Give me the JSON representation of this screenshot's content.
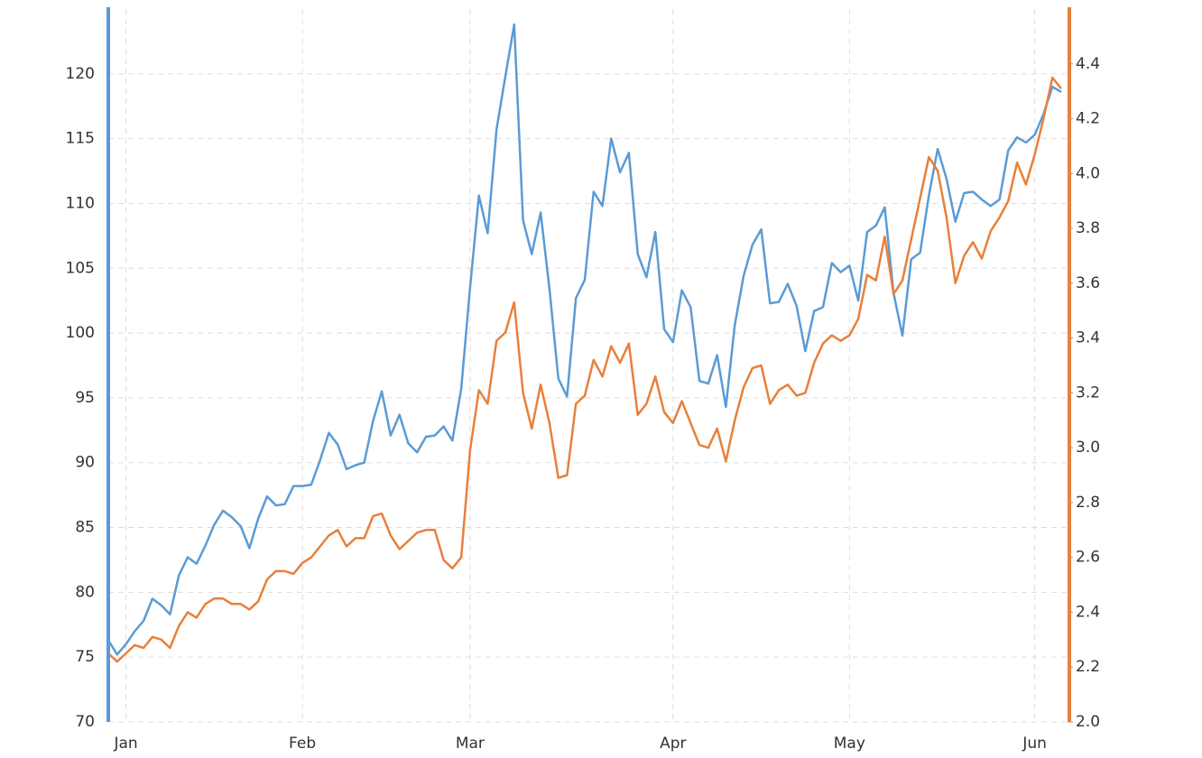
{
  "chart_data": {
    "type": "line",
    "categories": [
      null,
      null,
      "Jan",
      null,
      null,
      null,
      null,
      null,
      null,
      null,
      null,
      null,
      null,
      null,
      null,
      null,
      null,
      null,
      null,
      null,
      null,
      null,
      "Feb",
      null,
      null,
      null,
      null,
      null,
      null,
      null,
      null,
      null,
      null,
      null,
      null,
      null,
      null,
      null,
      null,
      null,
      null,
      "Mar",
      null,
      null,
      null,
      null,
      null,
      null,
      null,
      null,
      null,
      null,
      null,
      null,
      null,
      null,
      null,
      null,
      null,
      null,
      null,
      null,
      null,
      null,
      "Apr",
      null,
      null,
      null,
      null,
      null,
      null,
      null,
      null,
      null,
      null,
      null,
      null,
      null,
      null,
      null,
      null,
      null,
      null,
      null,
      "May",
      null,
      null,
      null,
      null,
      null,
      null,
      null,
      null,
      null,
      null,
      null,
      null,
      null,
      null,
      null,
      null,
      null,
      null,
      null,
      null,
      "Jun",
      null,
      null,
      null
    ],
    "series": [
      {
        "color": "#5b9bd5",
        "axis": "y",
        "values": [
          76.3,
          75.2,
          76,
          77,
          77.8,
          79.5,
          79,
          78.3,
          81.3,
          82.7,
          82.2,
          83.6,
          85.2,
          86.3,
          85.8,
          85.1,
          83.4,
          85.7,
          87.4,
          86.7,
          86.8,
          88.2,
          88.2,
          88.3,
          90.2,
          92.3,
          91.4,
          89.5,
          89.8,
          90,
          93.2,
          95.5,
          92.1,
          93.7,
          91.5,
          90.8,
          92,
          92.1,
          92.8,
          91.7,
          95.7,
          103.5,
          110.6,
          107.7,
          115.7,
          119.8,
          123.8,
          108.7,
          106.1,
          109.3,
          103.4,
          96.5,
          95.1,
          102.7,
          104.1,
          110.9,
          109.8,
          115,
          112.4,
          113.9,
          106.1,
          104.3,
          107.8,
          100.3,
          99.3,
          103.3,
          102,
          96.3,
          96.1,
          98.3,
          94.3,
          100.6,
          104.4,
          106.8,
          108,
          102.3,
          102.4,
          103.8,
          102.1,
          98.6,
          101.7,
          102,
          105.4,
          104.7,
          105.2,
          102.5,
          107.8,
          108.3,
          109.7,
          103.1,
          99.8,
          105.7,
          106.2,
          110.6,
          114.2,
          111.9,
          108.6,
          110.8,
          110.9,
          110.3,
          109.8,
          110.3,
          114.1,
          115.1,
          114.7,
          115.3,
          116.9,
          119,
          118.6
        ]
      },
      {
        "color": "#e8803a",
        "axis": "y2",
        "values": [
          2.25,
          2.22,
          2.25,
          2.28,
          2.27,
          2.31,
          2.3,
          2.27,
          2.35,
          2.4,
          2.38,
          2.43,
          2.45,
          2.45,
          2.43,
          2.43,
          2.41,
          2.44,
          2.52,
          2.55,
          2.55,
          2.54,
          2.58,
          2.6,
          2.64,
          2.68,
          2.7,
          2.64,
          2.67,
          2.67,
          2.75,
          2.76,
          2.68,
          2.63,
          2.66,
          2.69,
          2.7,
          2.7,
          2.59,
          2.56,
          2.6,
          2.99,
          3.21,
          3.16,
          3.39,
          3.42,
          3.53,
          3.2,
          3.07,
          3.23,
          3.09,
          2.89,
          2.9,
          3.16,
          3.19,
          3.32,
          3.26,
          3.37,
          3.31,
          3.38,
          3.12,
          3.16,
          3.26,
          3.13,
          3.09,
          3.17,
          3.09,
          3.01,
          3.0,
          3.07,
          2.95,
          3.1,
          3.22,
          3.29,
          3.3,
          3.16,
          3.21,
          3.23,
          3.19,
          3.2,
          3.31,
          3.38,
          3.41,
          3.39,
          3.41,
          3.47,
          3.63,
          3.61,
          3.77,
          3.56,
          3.61,
          3.76,
          3.91,
          4.06,
          4.01,
          3.84,
          3.6,
          3.7,
          3.75,
          3.69,
          3.79,
          3.84,
          3.9,
          4.04,
          3.96,
          4.07,
          4.2,
          4.35,
          4.31
        ]
      }
    ],
    "ylim": [
      70,
      125
    ],
    "yticks": [
      70,
      75,
      80,
      85,
      90,
      95,
      100,
      105,
      110,
      115,
      120
    ],
    "y2lim": [
      2.0,
      4.6
    ],
    "y2ticks": [
      {
        "value": 2.0,
        "label": "2.0"
      },
      2.2,
      2.4,
      2.6,
      2.8,
      {
        "value": 3.0,
        "label": "3.0"
      },
      3.2,
      3.4,
      3.6,
      3.8,
      {
        "value": 4.0,
        "label": "4.0"
      },
      4.2,
      4.4
    ],
    "grid": true
  }
}
